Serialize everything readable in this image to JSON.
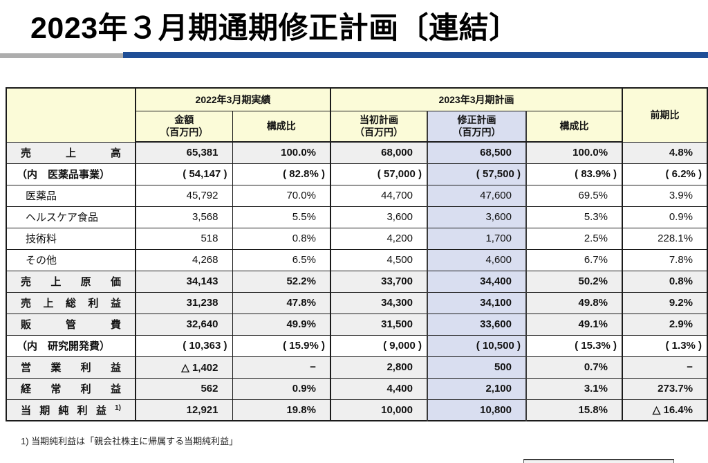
{
  "page": {
    "title": "2023年３月期通期修正計画〔連結〕",
    "footnote": "1) 当期純利益は「親会社株主に帰属する当期純利益」"
  },
  "colors": {
    "header_yellow": "#FBFBD8",
    "revised_column_blue": "#D9DEF0",
    "subtotal_row_gray": "#EFEFEF",
    "rule_blue": "#1F4E96",
    "rule_gray": "#ADADAD"
  },
  "table": {
    "headers": {
      "group_2022": "2022年3月期実績",
      "group_2023": "2023年3月期計画",
      "yoy": "前期比",
      "amount": "金額",
      "amount_unit": "（百万円）",
      "ratio_2022": "構成比",
      "initial_plan": "当初計画",
      "initial_plan_unit": "（百万円）",
      "revised_plan": "修正計画",
      "revised_plan_unit": "（百万円）",
      "ratio_2023": "構成比"
    },
    "rows": [
      {
        "label": "売上高",
        "style": "total",
        "values": [
          "65,381",
          "100.0%",
          "68,000",
          "68,500",
          "100.0%",
          "4.8%"
        ]
      },
      {
        "label": "（内　医薬品事業）",
        "style": "inner",
        "values": [
          "( 54,147 )",
          "( 82.8% )",
          "( 57,000 )",
          "( 57,500 )",
          "( 83.9% )",
          "( 6.2% )"
        ]
      },
      {
        "label": "医薬品",
        "style": "sub",
        "values": [
          "45,792",
          "70.0%",
          "44,700",
          "47,600",
          "69.5%",
          "3.9%"
        ]
      },
      {
        "label": "ヘルスケア食品",
        "style": "sub",
        "values": [
          "3,568",
          "5.5%",
          "3,600",
          "3,600",
          "5.3%",
          "0.9%"
        ]
      },
      {
        "label": "技術料",
        "style": "sub",
        "values": [
          "518",
          "0.8%",
          "4,200",
          "1,700",
          "2.5%",
          "228.1%"
        ]
      },
      {
        "label": "その他",
        "style": "sub",
        "values": [
          "4,268",
          "6.5%",
          "4,500",
          "4,600",
          "6.7%",
          "7.8%"
        ]
      },
      {
        "label": "売上原価",
        "style": "total",
        "values": [
          "34,143",
          "52.2%",
          "33,700",
          "34,400",
          "50.2%",
          "0.8%"
        ]
      },
      {
        "label": "売上総利益",
        "style": "total",
        "values": [
          "31,238",
          "47.8%",
          "34,300",
          "34,100",
          "49.8%",
          "9.2%"
        ]
      },
      {
        "label": "販管費",
        "style": "total",
        "values": [
          "32,640",
          "49.9%",
          "31,500",
          "33,600",
          "49.1%",
          "2.9%"
        ]
      },
      {
        "label": "（内　研究開発費）",
        "style": "inner",
        "values": [
          "( 10,363 )",
          "( 15.9% )",
          "( 9,000 )",
          "( 10,500 )",
          "( 15.3% )",
          "( 1.3% )"
        ]
      },
      {
        "label": "営業利益",
        "style": "total",
        "values": [
          "△ 1,402",
          "−",
          "2,800",
          "500",
          "0.7%",
          "−"
        ]
      },
      {
        "label": "経常利益",
        "style": "total",
        "values": [
          "562",
          "0.9%",
          "4,400",
          "2,100",
          "3.1%",
          "273.7%"
        ]
      },
      {
        "label": "当期純利益",
        "sup": "1)",
        "style": "total",
        "values": [
          "12,921",
          "19.8%",
          "10,000",
          "10,800",
          "15.8%",
          "△ 16.4%"
        ]
      }
    ]
  }
}
